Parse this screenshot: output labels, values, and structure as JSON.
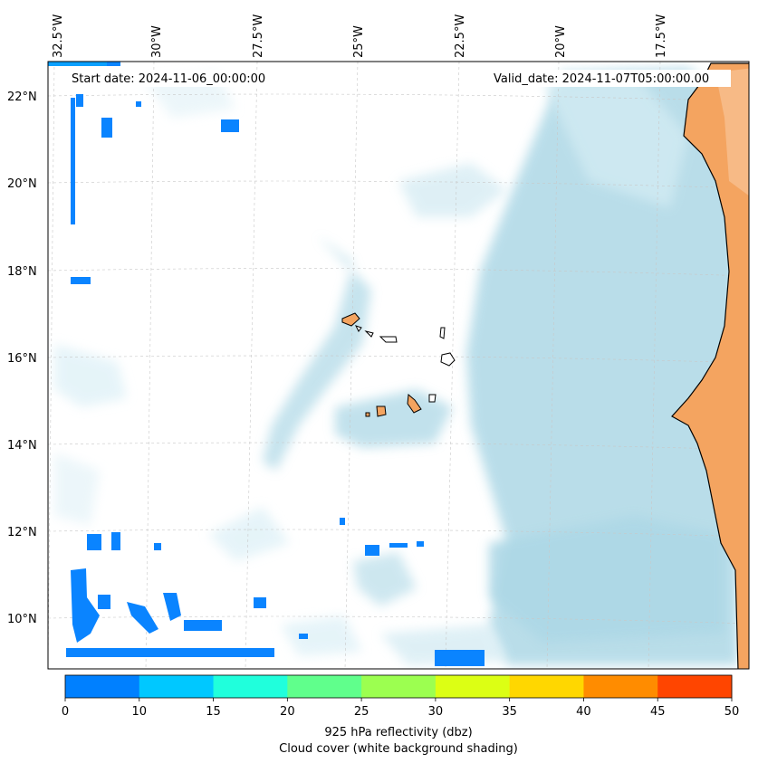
{
  "map": {
    "start_date": "Start date: 2024-11-06_00:00:00",
    "valid_date": "Valid_date: 2024-11-07T05:00:00.00",
    "lon_labels": [
      "32.5°W",
      "30°W",
      "27.5°W",
      "25°W",
      "22.5°W",
      "20°W",
      "17.5°W"
    ],
    "lat_labels": [
      "22°N",
      "20°N",
      "18°N",
      "16°N",
      "14°N",
      "12°N",
      "10°N"
    ],
    "colors": {
      "land": "#f4a460",
      "cloud": "#add8e6",
      "coast": "#000000",
      "reflectivity_low": "#0a84ff"
    }
  },
  "colorbar": {
    "ticks": [
      "0",
      "10",
      "15",
      "20",
      "25",
      "30",
      "35",
      "40",
      "45",
      "50"
    ],
    "colors": [
      "#0080ff",
      "#00c8ff",
      "#20ffdc",
      "#60ff8c",
      "#9cff50",
      "#dcff14",
      "#ffd700",
      "#ff8c00",
      "#ff4500"
    ],
    "label_line1": "925 hPa reflectivity (dbz)",
    "label_line2": "Cloud cover (white background shading)"
  }
}
